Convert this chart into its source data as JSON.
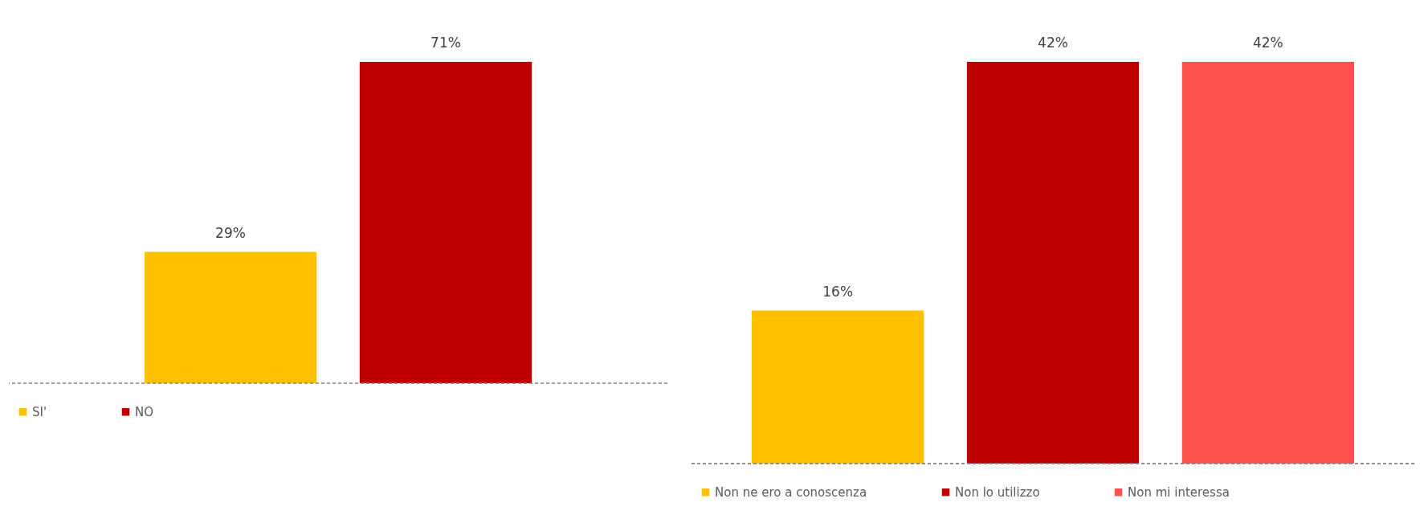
{
  "chart_data": [
    {
      "type": "bar",
      "categories": [
        null
      ],
      "legend": "bottom",
      "ref_lines": [
        {
          "axis": "y",
          "value": 0,
          "color": "#808080",
          "line_style": "dashed"
        }
      ],
      "series": [
        {
          "name": "SI'",
          "color": "#ffc000",
          "values": [
            29
          ],
          "value_labels": [
            "29%"
          ]
        },
        {
          "name": "NO",
          "color": "#c00000",
          "values": [
            71
          ],
          "value_labels": [
            "71%"
          ]
        }
      ]
    },
    {
      "type": "bar",
      "categories": [
        null
      ],
      "legend": "bottom",
      "ref_lines": [
        {
          "axis": "y",
          "value": 0,
          "color": "#808080",
          "line_style": "dashed"
        }
      ],
      "series": [
        {
          "name": "Non ne ero a conoscenza",
          "color": "#ffc000",
          "values": [
            16
          ],
          "value_labels": [
            "16%"
          ]
        },
        {
          "name": "Non lo utilizzo",
          "color": "#c00000",
          "values": [
            42
          ],
          "value_labels": [
            "42%"
          ]
        },
        {
          "name": "Non mi interessa",
          "color": "#ff5050",
          "values": [
            42
          ],
          "value_labels": [
            "42%"
          ]
        }
      ]
    }
  ]
}
